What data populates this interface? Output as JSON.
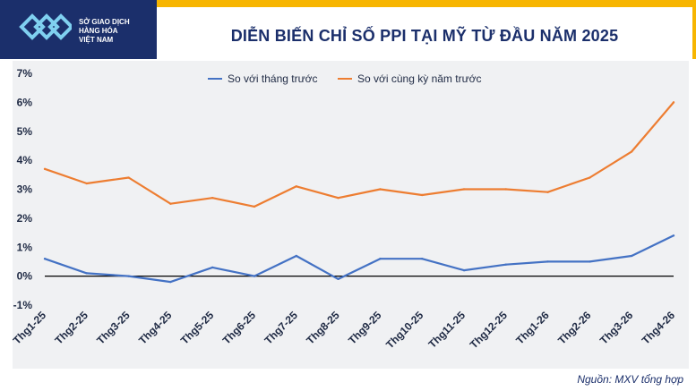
{
  "header": {
    "logo_lines": [
      "SỞ GIAO DỊCH",
      "HÀNG HÓA",
      "VIỆT NAM"
    ],
    "title": "DIỄN BIẾN CHỈ SỐ PPI TẠI MỸ TỪ ĐẦU NĂM 2025"
  },
  "footer": {
    "source": "Nguồn: MXV tổng hợp"
  },
  "colors": {
    "header": "#f7b500",
    "logo_bg": "#1b2f6b",
    "series_mom": "#4472c4",
    "series_yoy": "#ed7d31"
  },
  "chart_data": {
    "type": "line",
    "title": "DIỄN BIẾN CHỈ SỐ PPI TẠI MỸ TỪ ĐẦU NĂM 2025",
    "categories": [
      "Thg1-25",
      "Thg2-25",
      "Thg3-25",
      "Thg4-25",
      "Thg5-25",
      "Thg6-25",
      "Thg7-25",
      "Thg8-25",
      "Thg9-25",
      "Thg10-25",
      "Thg11-25",
      "Thg12-25",
      "Thg1-26",
      "Thg2-26",
      "Thg3-26",
      "Thg4-26"
    ],
    "y_tick_labels": [
      "-1%",
      "0%",
      "1%",
      "2%",
      "3%",
      "4%",
      "5%",
      "6%",
      "7%"
    ],
    "ylim": [
      -1,
      7
    ],
    "grid": false,
    "legend_position": "top",
    "series": [
      {
        "name": "So với tháng trước",
        "color": "#4472c4",
        "values": [
          0.6,
          0.1,
          0.0,
          -0.2,
          0.3,
          0.0,
          0.7,
          -0.1,
          0.6,
          0.6,
          0.2,
          0.4,
          0.5,
          0.5,
          0.7,
          1.4
        ]
      },
      {
        "name": "So với cùng kỳ năm trước",
        "color": "#ed7d31",
        "values": [
          3.7,
          3.2,
          3.4,
          2.5,
          2.7,
          2.4,
          3.1,
          2.7,
          3.0,
          2.8,
          3.0,
          3.0,
          2.9,
          3.4,
          4.3,
          6.0
        ]
      }
    ]
  }
}
